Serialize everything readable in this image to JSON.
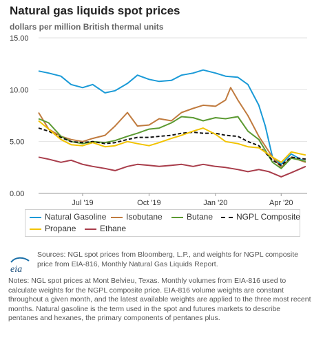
{
  "header": {
    "title": "Natural gas liquids spot prices",
    "subtitle": "dollars per million British thermal units"
  },
  "chart_data": {
    "type": "line",
    "title": "Natural gas liquids spot prices",
    "ylabel": "dollars per million British thermal units",
    "ylim": [
      0,
      15
    ],
    "yticks": [
      "15.00",
      "10.00",
      "5.00",
      "0.00"
    ],
    "xlim": [
      "2019-05-01",
      "2020-05-07"
    ],
    "xticks": [
      {
        "date": "2019-07-01",
        "label": "Jul '19"
      },
      {
        "date": "2019-10-01",
        "label": "Oct '19"
      },
      {
        "date": "2020-01-01",
        "label": "Jan '20"
      },
      {
        "date": "2020-04-01",
        "label": "Apr '20"
      }
    ],
    "grid": "horizontal",
    "legend_position": "bottom",
    "series": [
      {
        "name": "Natural Gasoline",
        "color": "#1a9ad7",
        "dash": "solid",
        "points": [
          [
            "2019-05-01",
            11.8
          ],
          [
            "2019-05-15",
            11.6
          ],
          [
            "2019-06-01",
            11.3
          ],
          [
            "2019-06-15",
            10.5
          ],
          [
            "2019-07-01",
            10.2
          ],
          [
            "2019-07-15",
            10.5
          ],
          [
            "2019-08-01",
            9.7
          ],
          [
            "2019-08-15",
            9.9
          ],
          [
            "2019-09-01",
            10.6
          ],
          [
            "2019-09-15",
            11.4
          ],
          [
            "2019-10-01",
            11.0
          ],
          [
            "2019-10-15",
            10.8
          ],
          [
            "2019-11-01",
            10.9
          ],
          [
            "2019-11-15",
            11.4
          ],
          [
            "2019-12-01",
            11.6
          ],
          [
            "2019-12-15",
            11.9
          ],
          [
            "2020-01-01",
            11.6
          ],
          [
            "2020-01-15",
            11.3
          ],
          [
            "2020-02-01",
            11.2
          ],
          [
            "2020-02-15",
            10.5
          ],
          [
            "2020-03-01",
            8.5
          ],
          [
            "2020-03-10",
            6.5
          ],
          [
            "2020-03-20",
            3.5
          ],
          [
            "2020-04-01",
            2.8
          ],
          [
            "2020-04-15",
            3.8
          ],
          [
            "2020-05-05",
            3.0
          ]
        ]
      },
      {
        "name": "Isobutane",
        "color": "#c07b3f",
        "dash": "solid",
        "points": [
          [
            "2019-05-01",
            7.8
          ],
          [
            "2019-05-15",
            6.2
          ],
          [
            "2019-06-01",
            5.5
          ],
          [
            "2019-06-15",
            5.2
          ],
          [
            "2019-07-01",
            5.0
          ],
          [
            "2019-07-15",
            5.3
          ],
          [
            "2019-08-01",
            5.6
          ],
          [
            "2019-08-15",
            6.5
          ],
          [
            "2019-09-01",
            7.8
          ],
          [
            "2019-09-15",
            6.5
          ],
          [
            "2019-10-01",
            6.6
          ],
          [
            "2019-10-15",
            7.2
          ],
          [
            "2019-11-01",
            7.0
          ],
          [
            "2019-11-15",
            7.8
          ],
          [
            "2019-12-01",
            8.2
          ],
          [
            "2019-12-15",
            8.5
          ],
          [
            "2020-01-01",
            8.4
          ],
          [
            "2020-01-15",
            9.0
          ],
          [
            "2020-01-22",
            10.2
          ],
          [
            "2020-02-01",
            9.0
          ],
          [
            "2020-02-15",
            7.5
          ],
          [
            "2020-03-01",
            5.5
          ],
          [
            "2020-03-20",
            3.5
          ],
          [
            "2020-04-01",
            2.5
          ],
          [
            "2020-04-15",
            3.5
          ],
          [
            "2020-05-05",
            3.0
          ]
        ]
      },
      {
        "name": "Butane",
        "color": "#5b9a32",
        "dash": "solid",
        "points": [
          [
            "2019-05-01",
            7.2
          ],
          [
            "2019-05-15",
            6.8
          ],
          [
            "2019-06-01",
            5.5
          ],
          [
            "2019-06-15",
            5.0
          ],
          [
            "2019-07-01",
            4.8
          ],
          [
            "2019-07-15",
            5.0
          ],
          [
            "2019-08-01",
            4.9
          ],
          [
            "2019-08-15",
            5.1
          ],
          [
            "2019-09-01",
            5.5
          ],
          [
            "2019-09-15",
            5.8
          ],
          [
            "2019-10-01",
            6.2
          ],
          [
            "2019-10-15",
            6.3
          ],
          [
            "2019-11-01",
            6.8
          ],
          [
            "2019-11-15",
            7.4
          ],
          [
            "2019-12-01",
            7.3
          ],
          [
            "2019-12-15",
            7.0
          ],
          [
            "2020-01-01",
            7.3
          ],
          [
            "2020-01-15",
            7.2
          ],
          [
            "2020-02-01",
            7.4
          ],
          [
            "2020-02-15",
            6.0
          ],
          [
            "2020-03-01",
            5.2
          ],
          [
            "2020-03-20",
            3.0
          ],
          [
            "2020-04-01",
            2.4
          ],
          [
            "2020-04-15",
            3.4
          ],
          [
            "2020-05-05",
            3.1
          ]
        ]
      },
      {
        "name": "NGPL Composite",
        "color": "#111111",
        "dash": "dashed",
        "points": [
          [
            "2019-05-01",
            6.3
          ],
          [
            "2019-05-15",
            6.0
          ],
          [
            "2019-06-01",
            5.4
          ],
          [
            "2019-06-15",
            5.0
          ],
          [
            "2019-07-01",
            4.9
          ],
          [
            "2019-07-15",
            5.0
          ],
          [
            "2019-08-01",
            4.8
          ],
          [
            "2019-08-15",
            4.9
          ],
          [
            "2019-09-01",
            5.2
          ],
          [
            "2019-09-15",
            5.4
          ],
          [
            "2019-10-01",
            5.4
          ],
          [
            "2019-10-15",
            5.5
          ],
          [
            "2019-11-01",
            5.6
          ],
          [
            "2019-11-15",
            5.8
          ],
          [
            "2019-12-01",
            5.9
          ],
          [
            "2019-12-15",
            5.8
          ],
          [
            "2020-01-01",
            5.8
          ],
          [
            "2020-01-15",
            5.6
          ],
          [
            "2020-02-01",
            5.5
          ],
          [
            "2020-02-15",
            5.0
          ],
          [
            "2020-03-01",
            4.6
          ],
          [
            "2020-03-20",
            3.2
          ],
          [
            "2020-04-01",
            2.7
          ],
          [
            "2020-04-15",
            3.5
          ],
          [
            "2020-05-05",
            3.3
          ]
        ]
      },
      {
        "name": "Propane",
        "color": "#f2c300",
        "dash": "solid",
        "points": [
          [
            "2019-05-01",
            7.0
          ],
          [
            "2019-05-15",
            6.2
          ],
          [
            "2019-06-01",
            5.2
          ],
          [
            "2019-06-15",
            4.7
          ],
          [
            "2019-07-01",
            4.6
          ],
          [
            "2019-07-15",
            4.9
          ],
          [
            "2019-08-01",
            4.5
          ],
          [
            "2019-08-15",
            4.6
          ],
          [
            "2019-09-01",
            5.0
          ],
          [
            "2019-09-15",
            4.8
          ],
          [
            "2019-10-01",
            4.6
          ],
          [
            "2019-10-15",
            4.9
          ],
          [
            "2019-11-01",
            5.3
          ],
          [
            "2019-11-15",
            5.6
          ],
          [
            "2019-12-01",
            6.0
          ],
          [
            "2019-12-15",
            6.3
          ],
          [
            "2020-01-01",
            5.7
          ],
          [
            "2020-01-15",
            5.0
          ],
          [
            "2020-02-01",
            4.8
          ],
          [
            "2020-02-15",
            4.5
          ],
          [
            "2020-03-01",
            4.4
          ],
          [
            "2020-03-20",
            3.5
          ],
          [
            "2020-04-01",
            3.0
          ],
          [
            "2020-04-15",
            4.0
          ],
          [
            "2020-05-05",
            3.7
          ]
        ]
      },
      {
        "name": "Ethane",
        "color": "#a83c4a",
        "dash": "solid",
        "points": [
          [
            "2019-05-01",
            3.5
          ],
          [
            "2019-05-15",
            3.3
          ],
          [
            "2019-06-01",
            3.0
          ],
          [
            "2019-06-15",
            3.2
          ],
          [
            "2019-07-01",
            2.8
          ],
          [
            "2019-07-15",
            2.6
          ],
          [
            "2019-08-01",
            2.4
          ],
          [
            "2019-08-15",
            2.2
          ],
          [
            "2019-09-01",
            2.6
          ],
          [
            "2019-09-15",
            2.8
          ],
          [
            "2019-10-01",
            2.7
          ],
          [
            "2019-10-15",
            2.6
          ],
          [
            "2019-11-01",
            2.7
          ],
          [
            "2019-11-15",
            2.8
          ],
          [
            "2019-12-01",
            2.6
          ],
          [
            "2019-12-15",
            2.8
          ],
          [
            "2020-01-01",
            2.6
          ],
          [
            "2020-01-15",
            2.5
          ],
          [
            "2020-02-01",
            2.3
          ],
          [
            "2020-02-15",
            2.1
          ],
          [
            "2020-03-01",
            2.3
          ],
          [
            "2020-03-15",
            2.1
          ],
          [
            "2020-04-01",
            1.6
          ],
          [
            "2020-04-15",
            2.0
          ],
          [
            "2020-05-05",
            2.6
          ]
        ]
      }
    ]
  },
  "legend": {
    "items": [
      {
        "label": "Natural Gasoline"
      },
      {
        "label": "Isobutane"
      },
      {
        "label": "Butane"
      },
      {
        "label": "NGPL Composite"
      },
      {
        "label": "Propane"
      },
      {
        "label": "Ethane"
      }
    ]
  },
  "footer": {
    "logo_text": "eia",
    "sources": "Sources: NGL spot prices from Bloomberg, L.P., and weights for NGPL composite price from EIA-816, Monthly Natural Gas Liquids Report.",
    "notes": "Notes: NGL spot prices at Mont Belvieu, Texas. Monthly volumes from EIA-816 used to calculate weights for the NGPL composite price. EIA-816 volume weights are constant throughout a given month, and the latest available weights are applied to the three most recent months. Natural gasoline is the term used in the spot and futures markets to describe pentanes and hexanes, the primary components of pentanes plus."
  }
}
